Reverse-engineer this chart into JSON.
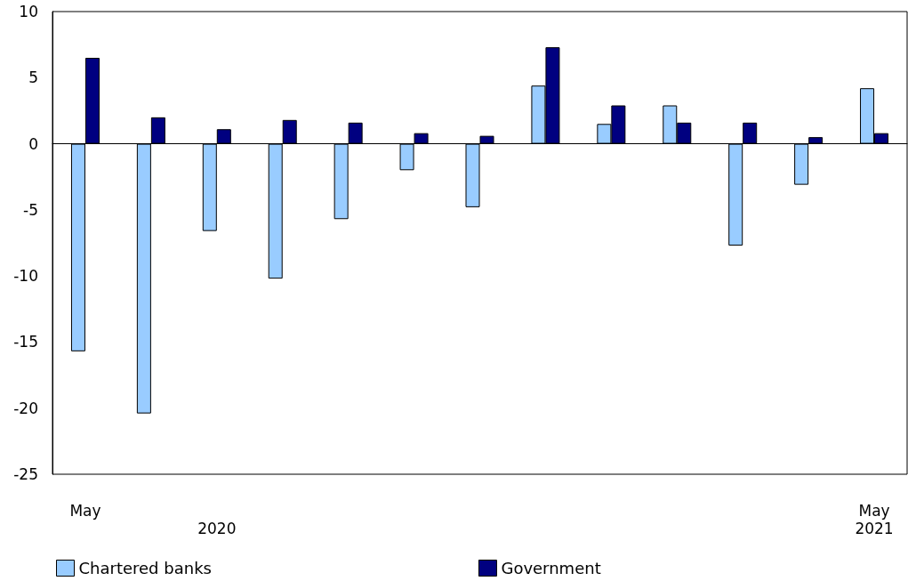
{
  "chart_data": {
    "type": "bar",
    "categories": [
      "May",
      null,
      null,
      null,
      null,
      null,
      null,
      null,
      null,
      null,
      null,
      null,
      "May"
    ],
    "series": [
      {
        "name": "Chartered banks",
        "color": "#99ccff",
        "values": [
          -15.7,
          -20.4,
          -6.6,
          -10.2,
          -5.7,
          -2.0,
          -4.8,
          4.4,
          1.5,
          2.9,
          -7.7,
          -3.1,
          4.2
        ]
      },
      {
        "name": "Government",
        "color": "#000080",
        "values": [
          6.5,
          2.0,
          1.1,
          1.8,
          1.6,
          0.8,
          0.6,
          7.3,
          2.9,
          1.6,
          1.6,
          0.5,
          0.8
        ]
      }
    ],
    "ylim": [
      -25,
      10
    ],
    "yticks": [
      -25,
      -20,
      -15,
      -10,
      -5,
      0,
      5,
      10
    ],
    "legend": "bottom left",
    "annotations": [
      "2020",
      "2021"
    ]
  }
}
